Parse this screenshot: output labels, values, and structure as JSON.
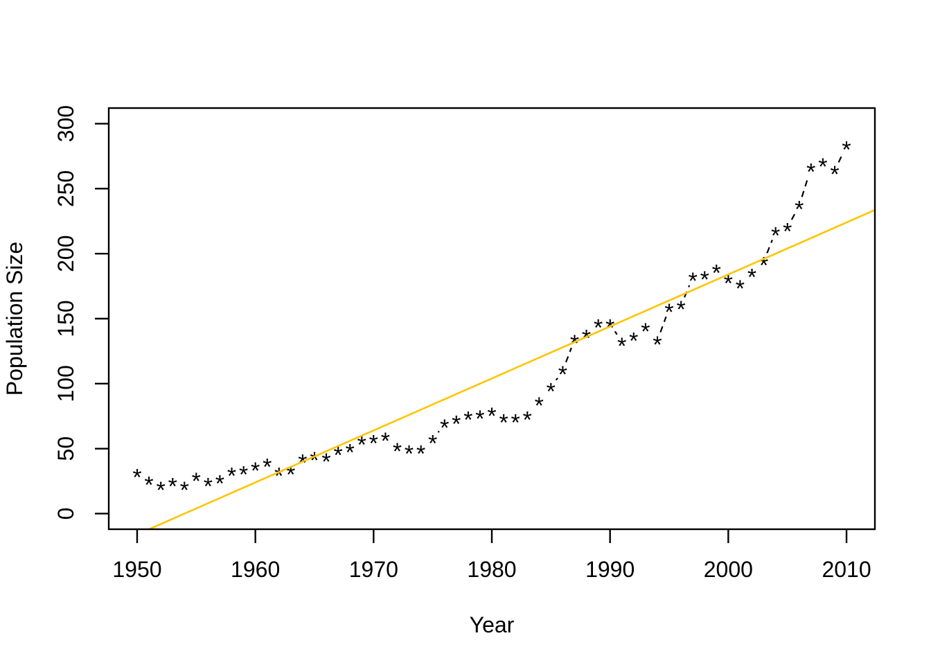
{
  "figure": {
    "background": "#FFFFFF",
    "title": ""
  },
  "chart_data": {
    "type": "scatter",
    "title": "",
    "xlabel": "Year",
    "ylabel": "Population Size",
    "x_ticks": [
      1950,
      1960,
      1970,
      1980,
      1990,
      2000,
      2010
    ],
    "y_ticks": [
      0,
      50,
      100,
      150,
      200,
      250,
      300
    ],
    "xlim": [
      1947.6,
      2012.4
    ],
    "ylim": [
      -12,
      312
    ],
    "grid": false,
    "legend": false,
    "point_glyph": "*",
    "point_color": "#000000",
    "axis_color": "#000000",
    "connector_style": "dashed",
    "x": [
      1950,
      1951,
      1952,
      1953,
      1954,
      1955,
      1956,
      1957,
      1958,
      1959,
      1960,
      1961,
      1962,
      1963,
      1964,
      1965,
      1966,
      1967,
      1968,
      1969,
      1970,
      1971,
      1972,
      1973,
      1974,
      1975,
      1976,
      1977,
      1978,
      1979,
      1980,
      1981,
      1982,
      1983,
      1984,
      1985,
      1986,
      1987,
      1988,
      1989,
      1990,
      1991,
      1992,
      1993,
      1994,
      1995,
      1996,
      1997,
      1998,
      1999,
      2000,
      2001,
      2002,
      2003,
      2004,
      2005,
      2006,
      2007,
      2008,
      2009,
      2010
    ],
    "y": [
      31,
      25,
      21,
      24,
      21,
      28,
      24,
      26,
      32,
      33,
      36,
      39,
      32,
      33,
      42,
      44,
      43,
      48,
      50,
      56,
      57,
      59,
      51,
      49,
      49,
      57,
      69,
      72,
      75,
      76,
      78,
      73,
      73,
      75,
      86,
      97,
      110,
      134,
      138,
      146,
      146,
      132,
      136,
      143,
      133,
      158,
      160,
      182,
      183,
      188,
      180,
      176,
      185,
      194,
      217,
      220,
      237,
      266,
      270,
      264,
      283
    ],
    "trend_line": {
      "type": "linear",
      "slope_per_year": 4.0,
      "value_at_1980": 104,
      "color": "#FFC400"
    }
  }
}
